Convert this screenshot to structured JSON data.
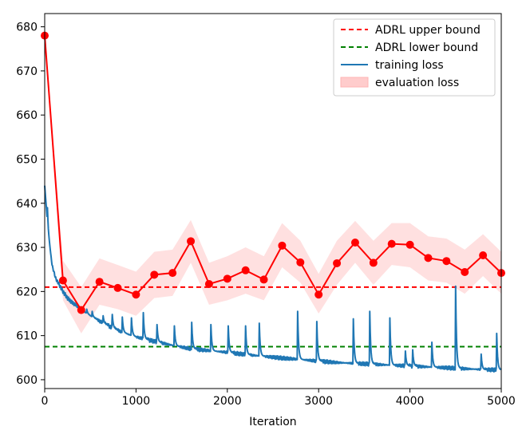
{
  "chart_data": {
    "type": "line",
    "title": "",
    "xlabel": "Iteration",
    "ylabel": "",
    "xlim": [
      0,
      5000
    ],
    "ylim": [
      598,
      683
    ],
    "x_ticks": [
      0,
      1000,
      2000,
      3000,
      4000,
      5000
    ],
    "y_ticks": [
      600,
      610,
      620,
      630,
      640,
      650,
      660,
      670,
      680
    ],
    "grid": false,
    "legend_position": "top-right",
    "colors": {
      "upper_bound": "#ff0000",
      "lower_bound": "#008000",
      "training": "#1f77b4",
      "evaluation": "#ff0000",
      "evaluation_band": "#ffcccc"
    },
    "reference_lines": [
      {
        "name": "ADRL upper bound",
        "y": 621.0,
        "style": "dashed",
        "color": "#ff0000"
      },
      {
        "name": "ADRL lower bound",
        "y": 607.5,
        "style": "dashed",
        "color": "#008000"
      }
    ],
    "training_loss": {
      "name": "training loss",
      "x": [
        0,
        40,
        80,
        120,
        160,
        200,
        250,
        300,
        350,
        400,
        450,
        500,
        600,
        700,
        800,
        900,
        1000,
        1200,
        1400,
        1600,
        1800,
        2000,
        2200,
        2400,
        2600,
        2800,
        3000,
        3200,
        3400,
        3600,
        3800,
        4000,
        4200,
        4400,
        4600,
        4800,
        5000
      ],
      "y": [
        644,
        633,
        626,
        623,
        621.5,
        620,
        618.5,
        617.5,
        616.8,
        616,
        615.2,
        614.5,
        613.3,
        612.2,
        611.2,
        610.4,
        609.7,
        608.7,
        607.8,
        607.0,
        606.6,
        606.2,
        605.7,
        605.3,
        604.9,
        604.6,
        604.2,
        603.9,
        603.7,
        603.5,
        603.3,
        603.1,
        602.9,
        602.7,
        602.5,
        602.3,
        602.2
      ],
      "spikes": [
        {
          "x": 30,
          "y": 639
        },
        {
          "x": 460,
          "y": 616
        },
        {
          "x": 520,
          "y": 615.5
        },
        {
          "x": 640,
          "y": 614.5
        },
        {
          "x": 740,
          "y": 614.8
        },
        {
          "x": 850,
          "y": 614.2
        },
        {
          "x": 950,
          "y": 614.0
        },
        {
          "x": 1080,
          "y": 615.2
        },
        {
          "x": 1230,
          "y": 612.5
        },
        {
          "x": 1420,
          "y": 612.2
        },
        {
          "x": 1610,
          "y": 613.0
        },
        {
          "x": 1820,
          "y": 612.5
        },
        {
          "x": 2010,
          "y": 612.2
        },
        {
          "x": 2200,
          "y": 612.2
        },
        {
          "x": 2350,
          "y": 612.8
        },
        {
          "x": 2770,
          "y": 615.5
        },
        {
          "x": 2980,
          "y": 613.2
        },
        {
          "x": 3380,
          "y": 613.8
        },
        {
          "x": 3560,
          "y": 615.5
        },
        {
          "x": 3780,
          "y": 614.0
        },
        {
          "x": 3950,
          "y": 606.5
        },
        {
          "x": 4030,
          "y": 606.8
        },
        {
          "x": 4240,
          "y": 608.5
        },
        {
          "x": 4500,
          "y": 621.2
        },
        {
          "x": 4780,
          "y": 605.8
        },
        {
          "x": 4950,
          "y": 610.5
        }
      ]
    },
    "evaluation_loss": {
      "name": "evaluation loss",
      "x": [
        0,
        200,
        400,
        600,
        800,
        1000,
        1200,
        1400,
        1600,
        1800,
        2000,
        2200,
        2400,
        2600,
        2800,
        3000,
        3200,
        3400,
        3600,
        3800,
        4000,
        4200,
        4400,
        4600,
        4800,
        5000
      ],
      "y": [
        678,
        622.5,
        615.8,
        622.2,
        620.8,
        619.3,
        623.8,
        624.2,
        631.4,
        621.7,
        622.9,
        624.8,
        622.7,
        630.4,
        626.6,
        619.3,
        626.4,
        631.1,
        626.5,
        630.8,
        630.6,
        627.6,
        626.9,
        624.4,
        628.2,
        624.2
      ],
      "lower": [
        678,
        618,
        610.5,
        617,
        616,
        614.5,
        618.5,
        619,
        626.5,
        617,
        618,
        619.5,
        618,
        625.5,
        622,
        615,
        621.5,
        626.5,
        621.5,
        626,
        625.5,
        622.5,
        622,
        619.5,
        623.5,
        619.5
      ],
      "upper": [
        678,
        627,
        621,
        627.5,
        626,
        624.5,
        629,
        629.5,
        636.2,
        626.5,
        628,
        630,
        628,
        635.5,
        631.5,
        624,
        631.5,
        636,
        631.5,
        635.5,
        635.5,
        632.5,
        632,
        629.5,
        633,
        629
      ]
    },
    "legend": [
      "ADRL upper bound",
      "ADRL lower bound",
      "training loss",
      "evaluation loss"
    ]
  }
}
